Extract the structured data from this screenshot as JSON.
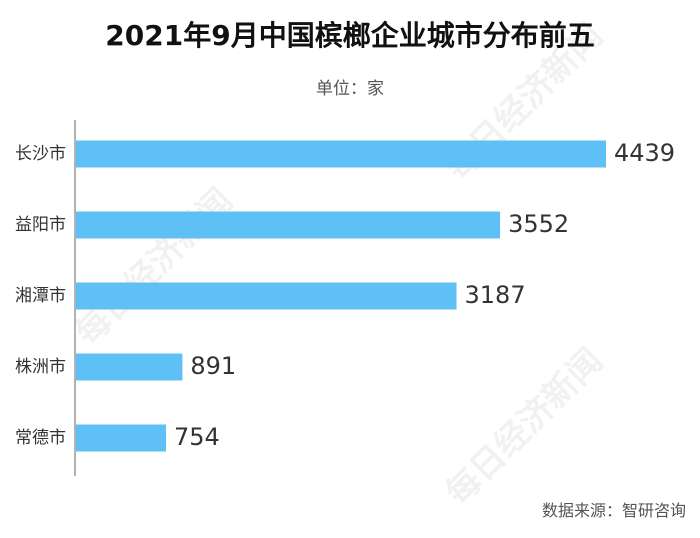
{
  "title": "2021年9月中国槟榔企业城市分布前五",
  "unit_label": "单位：家",
  "source_label": "数据来源：智研咨询",
  "watermark": "每日经济新闻",
  "colors": {
    "bar": "#5ec0f5",
    "axis": "#999999",
    "text": "#333333"
  },
  "chart_data": {
    "type": "bar",
    "orientation": "horizontal",
    "categories": [
      "长沙市",
      "益阳市",
      "湘潭市",
      "株洲市",
      "常德市"
    ],
    "values": [
      4439,
      3552,
      3187,
      891,
      754
    ],
    "title": "2021年9月中国槟榔企业城市分布前五",
    "xlabel": "",
    "ylabel": "",
    "grid": false,
    "legend": "none"
  }
}
